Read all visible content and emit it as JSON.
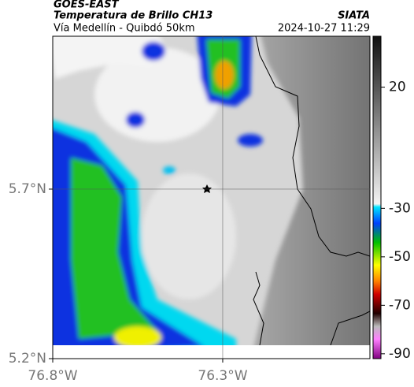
{
  "header": {
    "satellite": "GOES-EAST",
    "product": "Temperatura de Brillo CH13",
    "source": "SIATA",
    "route": "Vía Medellín - Quibdó 50km",
    "datetime": "2024-10-27 11:29"
  },
  "map": {
    "xlim": [
      -76.8,
      -75.867
    ],
    "ylim": [
      5.2,
      6.151
    ],
    "xticks": [
      {
        "value": -76.8,
        "label": "76.8°W"
      },
      {
        "value": -76.3,
        "label": "76.3°W"
      }
    ],
    "yticks": [
      {
        "value": 5.2,
        "label": "5.2°N"
      },
      {
        "value": 5.7,
        "label": "5.7°N"
      }
    ]
  },
  "colorbar": {
    "lim": [
      -92,
      41
    ],
    "ticks": [
      20,
      -30,
      -50,
      -70,
      -90
    ]
  }
}
